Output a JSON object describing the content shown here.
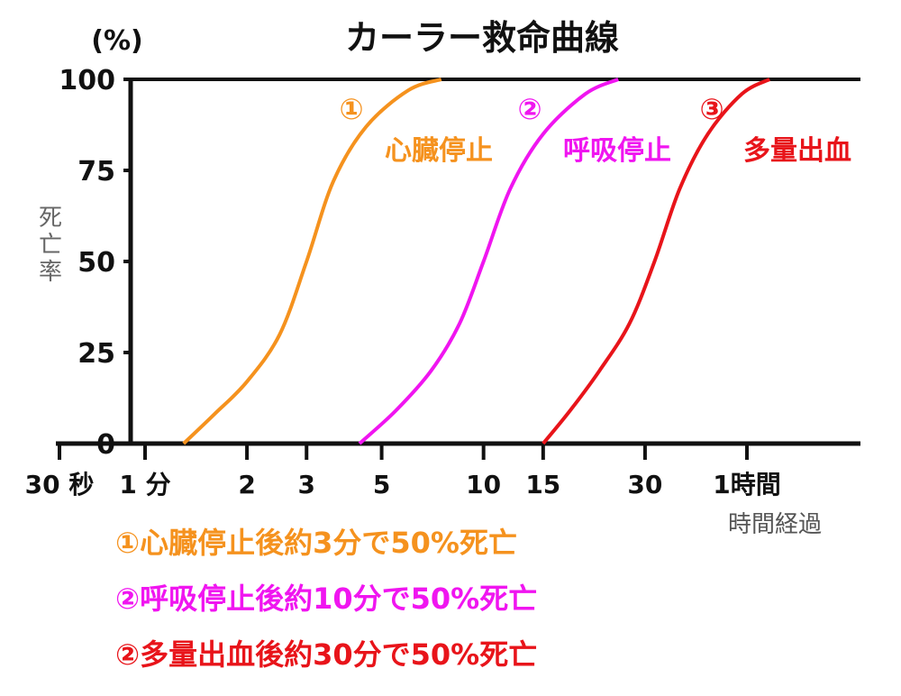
{
  "chart_data": {
    "type": "line",
    "title": "カーラー救命曲線",
    "ylabel": "死亡率",
    "y_unit": "(%)",
    "xlabel": "時間経過",
    "ylim": [
      0,
      100
    ],
    "yticks": [
      0,
      25,
      50,
      75,
      100
    ],
    "x_scale": "log",
    "x_ticks": [
      {
        "minutes": 0.5,
        "label": "30 秒"
      },
      {
        "minutes": 1,
        "label": "1 分"
      },
      {
        "minutes": 2,
        "label": "2"
      },
      {
        "minutes": 3,
        "label": "3"
      },
      {
        "minutes": 5,
        "label": "5"
      },
      {
        "minutes": 10,
        "label": "10"
      },
      {
        "minutes": 15,
        "label": "15"
      },
      {
        "minutes": 30,
        "label": "30"
      },
      {
        "minutes": 60,
        "label": "1時間"
      }
    ],
    "grid": false,
    "series": [
      {
        "marker": "①",
        "name": "心臓停止",
        "color": "#F5921E",
        "x": [
          1.3,
          1.6,
          2.0,
          2.5,
          3.0,
          3.6,
          4.5,
          6.0,
          7.5
        ],
        "y": [
          0,
          8,
          17,
          30,
          50,
          72,
          87,
          97,
          100
        ]
      },
      {
        "marker": "②",
        "name": "呼吸停止",
        "color": "#F015F0",
        "x": [
          4.3,
          5.5,
          7.0,
          8.5,
          10.0,
          12.0,
          15.0,
          20.0,
          25.0
        ],
        "y": [
          0,
          9,
          20,
          33,
          50,
          70,
          85,
          96,
          100
        ]
      },
      {
        "marker": "③",
        "name": "多量出血",
        "color": "#E8141A",
        "x": [
          15,
          18,
          22,
          27,
          32,
          38,
          46,
          58,
          70
        ],
        "y": [
          0,
          9,
          20,
          33,
          50,
          70,
          85,
          96,
          100
        ]
      }
    ]
  },
  "notes": [
    {
      "text": "①心臓停止後約3分で50%死亡",
      "color": "#F5921E"
    },
    {
      "text": "②呼吸停止後約10分で50%死亡",
      "color": "#F015F0"
    },
    {
      "text": "②多量出血後約30分で50%死亡",
      "color": "#E8141A"
    }
  ]
}
